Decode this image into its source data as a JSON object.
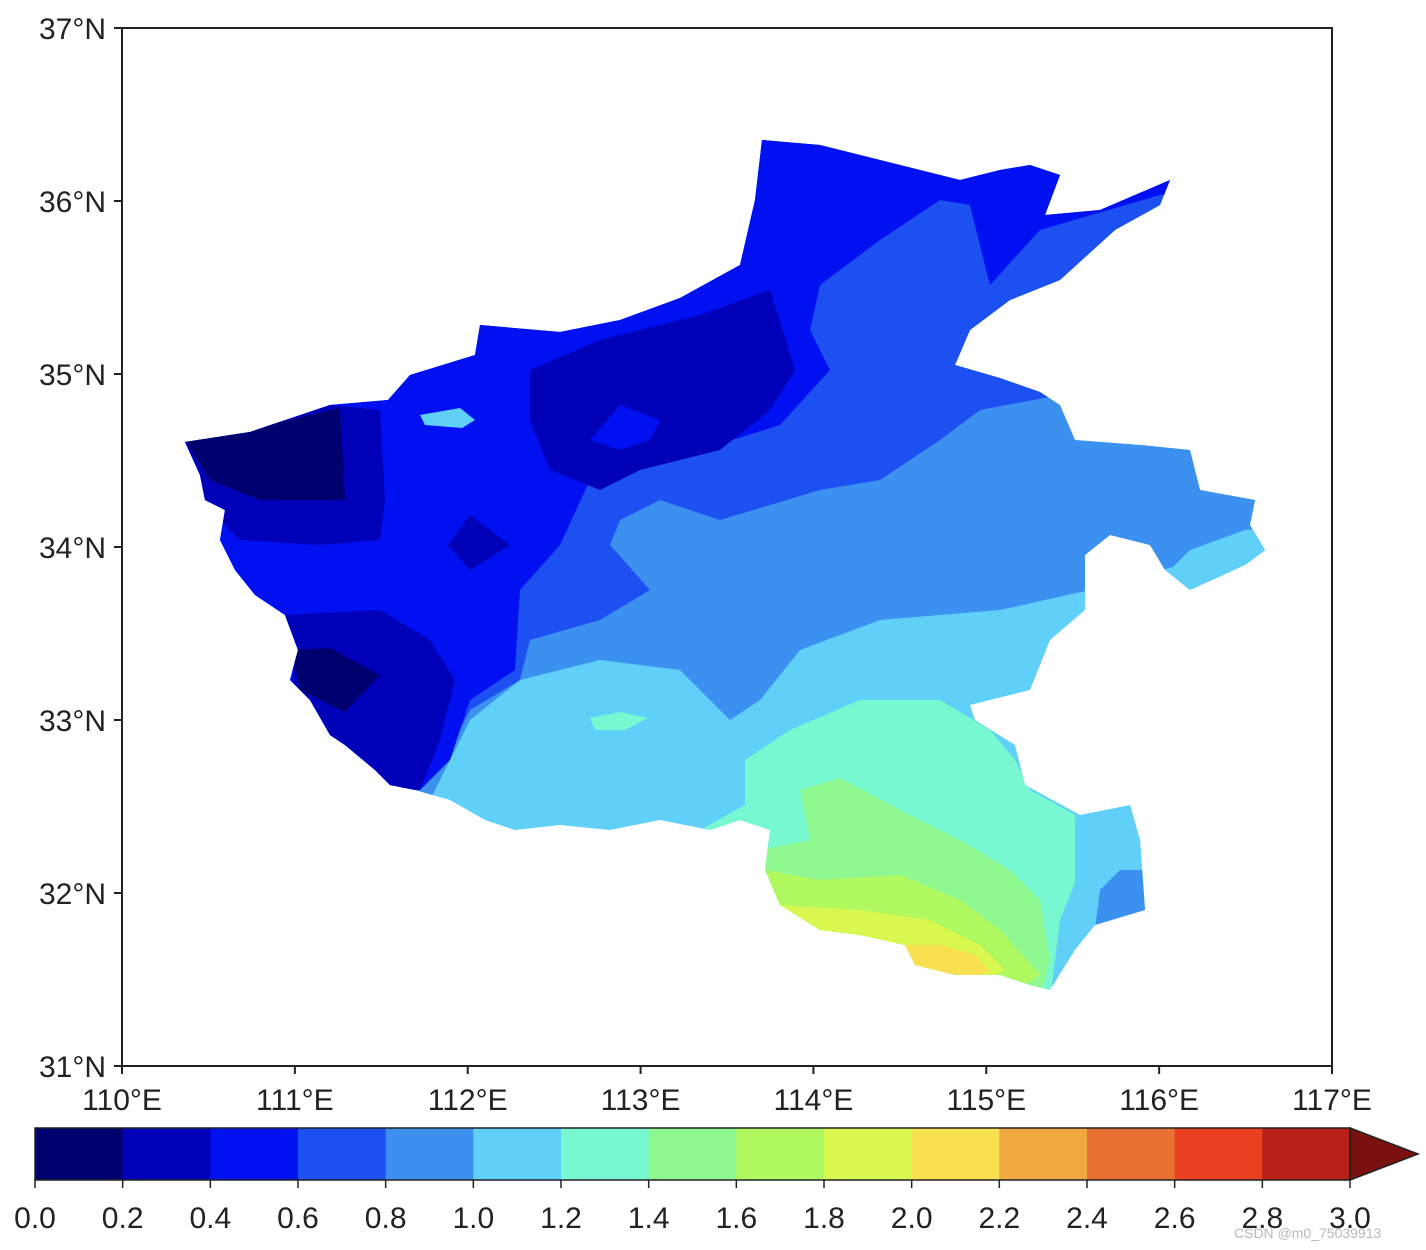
{
  "map": {
    "x_ticks": [
      "110°E",
      "111°E",
      "112°E",
      "113°E",
      "114°E",
      "115°E",
      "116°E",
      "117°E"
    ],
    "y_ticks": [
      "31°N",
      "32°N",
      "33°N",
      "34°N",
      "35°N",
      "36°N",
      "37°N"
    ],
    "lon_range": [
      110,
      117
    ],
    "lat_range": [
      31,
      37
    ]
  },
  "chart_data": {
    "type": "heatmap",
    "xlim": [
      110,
      117
    ],
    "ylim": [
      31,
      37
    ],
    "colorbar": {
      "levels": [
        "0.0",
        "0.2",
        "0.4",
        "0.6",
        "0.8",
        "1.0",
        "1.2",
        "1.4",
        "1.6",
        "1.8",
        "2.0",
        "2.2",
        "2.4",
        "2.6",
        "2.8",
        "3.0"
      ],
      "colors": [
        "#00006e",
        "#0000b8",
        "#0010f0",
        "#1c50f0",
        "#3c90f0",
        "#60d0f8",
        "#78f8d0",
        "#90f890",
        "#b0f860",
        "#d8f850",
        "#f8e050",
        "#f0a840",
        "#e87030",
        "#e84020",
        "#b82018"
      ],
      "extend_color": "#7a1010",
      "extend": "max"
    }
  },
  "watermark": "CSDN @m0_75039913"
}
